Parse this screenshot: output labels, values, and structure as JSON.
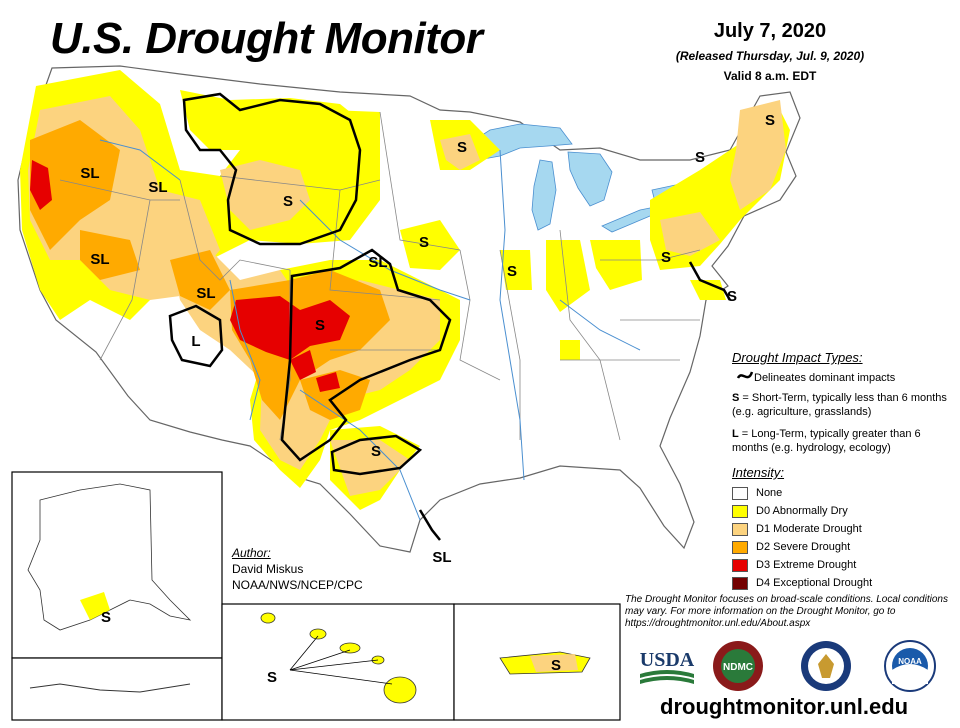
{
  "header": {
    "title": "U.S. Drought Monitor",
    "date": "July 7, 2020",
    "released": "(Released Thursday, Jul. 9, 2020)",
    "valid": "Valid 8 a.m. EDT"
  },
  "impact": {
    "heading": "Drought Impact Types:",
    "delineates": "Delineates dominant impacts",
    "s_key": "S",
    "s_desc": " = Short-Term, typically less than 6 months (e.g. agriculture, grasslands)",
    "l_key": "L",
    "l_desc": " = Long-Term, typically greater than 6 months (e.g. hydrology, ecology)"
  },
  "intensity": {
    "heading": "Intensity:",
    "items": [
      {
        "label": "None",
        "color": "#ffffff"
      },
      {
        "label": "D0 Abnormally Dry",
        "color": "#ffff00"
      },
      {
        "label": "D1 Moderate Drought",
        "color": "#fcd37f"
      },
      {
        "label": "D2 Severe Drought",
        "color": "#ffaa00"
      },
      {
        "label": "D3 Extreme Drought",
        "color": "#e60000"
      },
      {
        "label": "D4 Exceptional Drought",
        "color": "#730000"
      }
    ]
  },
  "author": {
    "heading": "Author:",
    "name": "David Miskus",
    "org": "NOAA/NWS/NCEP/CPC"
  },
  "note": "The Drought Monitor focuses on broad-scale conditions. Local conditions may vary. For more information on the Drought Monitor, go to https://droughtmonitor.unl.edu/About.aspx",
  "url": "droughtmonitor.unl.edu",
  "map_labels": [
    "SL",
    "SL",
    "S",
    "SL",
    "SL",
    "L",
    "S",
    "SL",
    "S",
    "S",
    "S",
    "S",
    "S",
    "S",
    "S",
    "S",
    "SL",
    "S",
    "S",
    "S"
  ],
  "logos": [
    "USDA",
    "NDMC",
    "NOAA"
  ],
  "colors": {
    "water": "#a6d8f0",
    "state_border": "#888888",
    "river": "#4a8fd0",
    "impact_line": "#000000"
  }
}
